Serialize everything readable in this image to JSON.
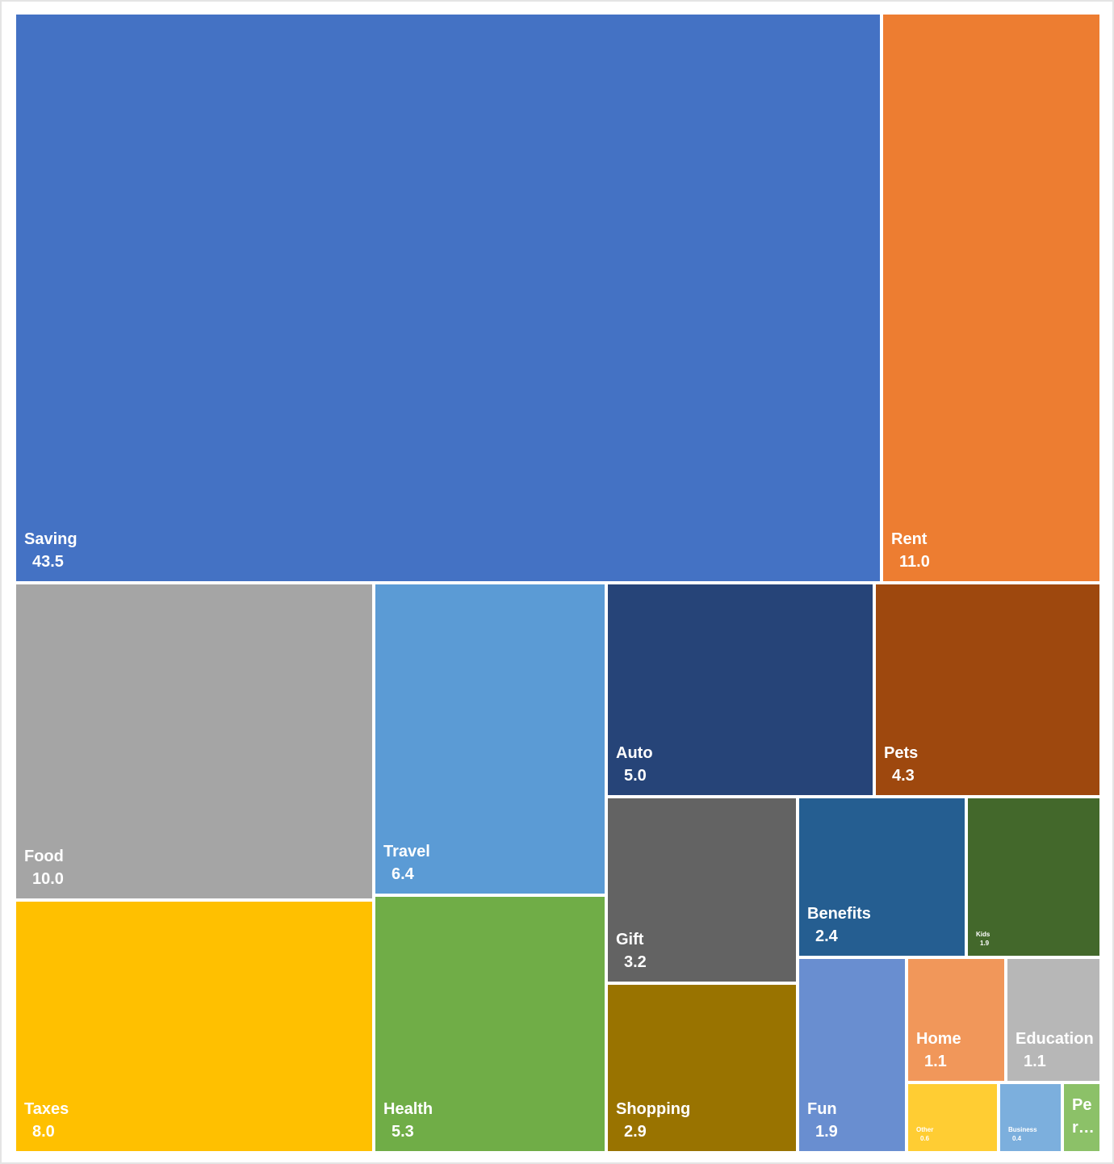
{
  "chart_data": {
    "type": "treemap",
    "title": "",
    "items": [
      {
        "name": "Saving",
        "value": 43.5,
        "label": "43.5",
        "color": "#4472C4"
      },
      {
        "name": "Rent",
        "value": 11.0,
        "label": "11.0",
        "color": "#ED7D31"
      },
      {
        "name": "Food",
        "value": 10.0,
        "label": "10.0",
        "color": "#A5A5A5"
      },
      {
        "name": "Taxes",
        "value": 8.0,
        "label": "8.0",
        "color": "#FFC000"
      },
      {
        "name": "Travel",
        "value": 6.4,
        "label": "6.4",
        "color": "#5B9BD5"
      },
      {
        "name": "Health",
        "value": 5.3,
        "label": "5.3",
        "color": "#70AD47"
      },
      {
        "name": "Auto",
        "value": 5.0,
        "label": "5.0",
        "color": "#264478"
      },
      {
        "name": "Pets",
        "value": 4.3,
        "label": "4.3",
        "color": "#9E480E"
      },
      {
        "name": "Gift",
        "value": 3.2,
        "label": "3.2",
        "color": "#636363"
      },
      {
        "name": "Shopping",
        "value": 2.9,
        "label": "2.9",
        "color": "#997300"
      },
      {
        "name": "Benefits",
        "value": 2.4,
        "label": "2.4",
        "color": "#255E91"
      },
      {
        "name": "Kids",
        "value": 1.9,
        "label": "1.9",
        "color": "#43682B"
      },
      {
        "name": "Fun",
        "value": 1.9,
        "label": "1.9",
        "color": "#698ED0"
      },
      {
        "name": "Home",
        "value": 1.1,
        "label": "1.1",
        "color": "#F1975A"
      },
      {
        "name": "Education",
        "value": 1.1,
        "label": "1.1",
        "color": "#B7B7B7"
      },
      {
        "name": "Other",
        "value": 0.6,
        "label": "0.6",
        "color": "#FFCD33"
      },
      {
        "name": "Business",
        "value": 0.4,
        "label": "0.4",
        "color": "#7CAFDD"
      },
      {
        "name": "Pe\nr…",
        "value": 0.3,
        "label": "",
        "color": "#8CC168"
      }
    ]
  }
}
